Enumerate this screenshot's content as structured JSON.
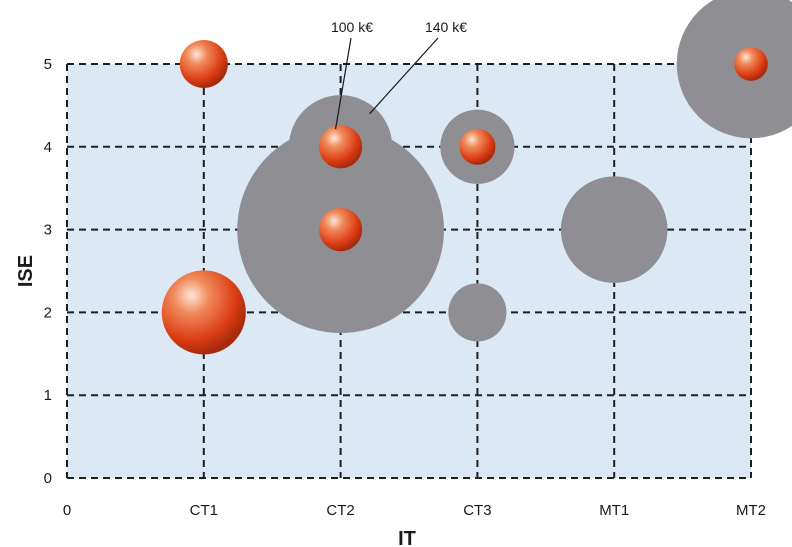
{
  "chart_data": {
    "type": "scatter",
    "subtype": "bubble",
    "title": "",
    "xlabel": "IT",
    "ylabel": "ISE",
    "x_categories": [
      "0",
      "CT1",
      "CT2",
      "CT3",
      "MT1",
      "MT2"
    ],
    "yticks": [
      "0",
      "1",
      "2",
      "3",
      "4",
      "5"
    ],
    "ylim": [
      0,
      5
    ],
    "grid": true,
    "plot_background": "#dce8f3",
    "gray_bubble_color": "#8e8e93",
    "orange_bubble_color": "#e04a1e",
    "bubbles": [
      {
        "x": "CT1",
        "y": 5,
        "gray": 0,
        "orange": 1.0
      },
      {
        "x": "CT1",
        "y": 2,
        "gray": 0,
        "orange": 1.75
      },
      {
        "x": "CT2",
        "y": 4,
        "gray": 1.6,
        "orange": 0.9
      },
      {
        "x": "CT2",
        "y": 3,
        "gray": 3.2,
        "orange": 0.9
      },
      {
        "x": "CT3",
        "y": 4,
        "gray": 1.15,
        "orange": 0.75
      },
      {
        "x": "CT3",
        "y": 2,
        "gray": 0.9,
        "orange": 0
      },
      {
        "x": "MT1",
        "y": 3,
        "gray": 1.65,
        "orange": 0
      },
      {
        "x": "MT2",
        "y": 5,
        "gray": 2.3,
        "orange": 0.7
      }
    ],
    "annotations": [
      {
        "text": "100 k€",
        "points_to": {
          "x": "CT2",
          "y": 4,
          "ring": "orange"
        }
      },
      {
        "text": "140 k€",
        "points_to": {
          "x": "CT2",
          "y": 4,
          "ring": "gray"
        }
      }
    ]
  }
}
